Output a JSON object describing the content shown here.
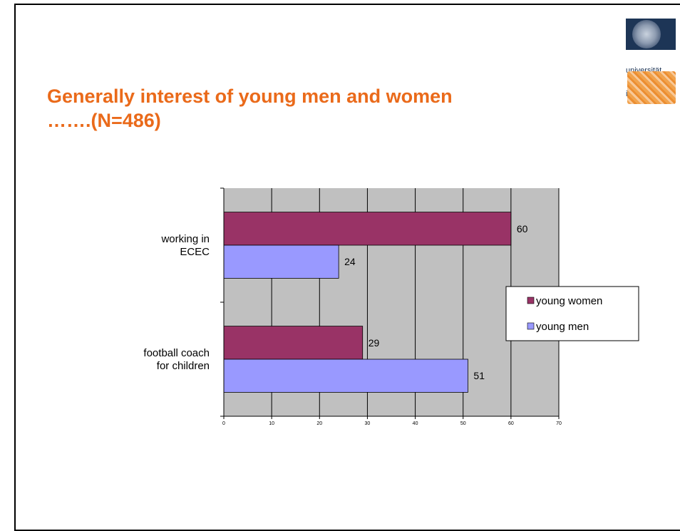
{
  "slide": {
    "title_lines": [
      "Generally interest of young men and women",
      "…….(N=486)"
    ],
    "logo": {
      "wordmark_lines": [
        "universität",
        "innsbruck"
      ],
      "seal_color": "#1d3556",
      "pattern_color": "#ec8e31"
    }
  },
  "chart_data": {
    "type": "bar",
    "orientation": "horizontal",
    "categories": [
      "working in ECEC",
      "football coach for children"
    ],
    "category_label_lines": [
      [
        "working in",
        "ECEC"
      ],
      [
        "football coach",
        "for children"
      ]
    ],
    "series": [
      {
        "name": "young women",
        "values": [
          60,
          29
        ],
        "color": "#993366"
      },
      {
        "name": "young men",
        "values": [
          24,
          51
        ],
        "color": "#9999ff"
      }
    ],
    "xlim": [
      0,
      70
    ],
    "x_ticks": [
      0,
      10,
      20,
      30,
      40,
      50,
      60,
      70
    ],
    "grid": true,
    "plot_background": "#c0c0c0",
    "data_labels": true,
    "legend_placement": "right",
    "title": "",
    "xlabel": "",
    "ylabel": ""
  }
}
